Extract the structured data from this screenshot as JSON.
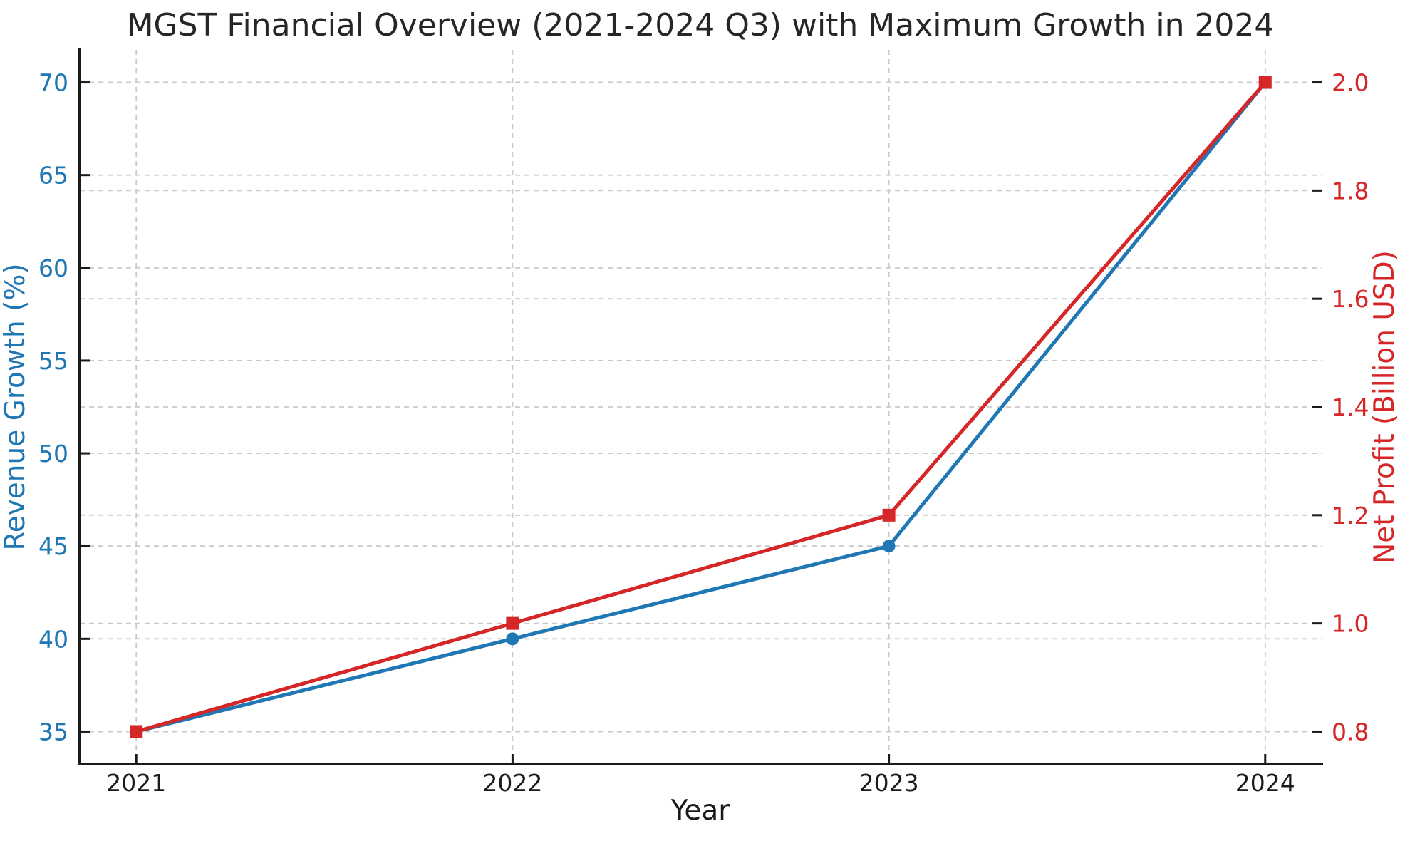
{
  "title": "MGST Financial Overview (2021-2024 Q3) with Maximum Growth in 2024",
  "chart_data": {
    "type": "line",
    "x": [
      2021,
      2022,
      2023,
      2024
    ],
    "x_tick_labels": [
      "2021",
      "2022",
      "2023",
      "2024"
    ],
    "xlabel": "Year",
    "xlim": [
      2020.85,
      2024.15
    ],
    "grid": true,
    "legend": "none",
    "left_axis": {
      "label": "Revenue Growth (%)",
      "color": "#1f77b4",
      "ticks": [
        35,
        40,
        45,
        50,
        55,
        60,
        65,
        70
      ],
      "tick_labels": [
        "35",
        "40",
        "45",
        "50",
        "55",
        "60",
        "65",
        "70"
      ],
      "lim": [
        33.25,
        71.75
      ]
    },
    "right_axis": {
      "label": "Net Profit (Billion USD)",
      "color": "#d62728",
      "ticks": [
        0.8,
        1.0,
        1.2,
        1.4,
        1.6,
        1.8,
        2.0
      ],
      "tick_labels": [
        "0.8",
        "1.0",
        "1.2",
        "1.4",
        "1.6",
        "1.8",
        "2.0"
      ],
      "lim": [
        0.74,
        2.06
      ]
    },
    "series": [
      {
        "id": "revenue-growth",
        "name": "Revenue Growth (%)",
        "axis": "left",
        "color": "#1f77b4",
        "marker": "circle",
        "values": [
          35,
          40,
          45,
          70
        ]
      },
      {
        "id": "net-profit",
        "name": "Net Profit (Billion USD)",
        "axis": "right",
        "color": "#d62728",
        "marker": "square",
        "values": [
          0.8,
          1.0,
          1.2,
          2.0
        ]
      }
    ]
  }
}
